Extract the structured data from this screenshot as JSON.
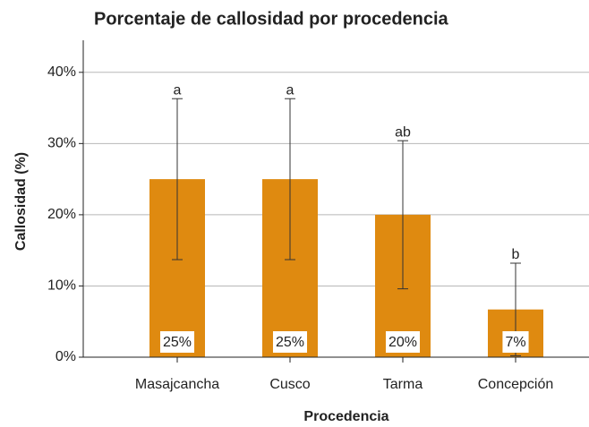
{
  "chart_data": {
    "type": "bar",
    "title": "Porcentaje de callosidad por procedencia",
    "x_label": "Procedencia",
    "y_label": "Callosidad (%)",
    "categories": [
      "Masajcancha",
      "Cusco",
      "Tarma",
      "Concepción"
    ],
    "values": [
      25,
      25,
      20,
      6.7
    ],
    "value_labels": [
      "25%",
      "25%",
      "20%",
      "7%"
    ],
    "errors": [
      11.3,
      11.3,
      10.4,
      6.5
    ],
    "annotations": [
      "a",
      "a",
      "ab",
      "b"
    ],
    "color": "#df8a10",
    "ylim": [
      0,
      44.5
    ],
    "yticks": [
      {
        "value": 0,
        "label": "0%"
      },
      {
        "value": 10,
        "label": "10%"
      },
      {
        "value": 20,
        "label": "20%"
      },
      {
        "value": 30,
        "label": "30%"
      },
      {
        "value": 40,
        "label": "40%"
      }
    ],
    "grid": true
  }
}
